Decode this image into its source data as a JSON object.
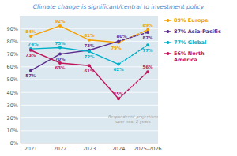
{
  "chart_data": {
    "type": "line",
    "title": "Climate change is significant/central to investment policy",
    "categories": [
      "2021",
      "2022",
      "2023",
      "2024",
      "2025-2026"
    ],
    "series": [
      {
        "name": "89%  Europe",
        "color": "#f5a000",
        "values": [
          84,
          92,
          81,
          79,
          89
        ],
        "value_labels": [
          "84%",
          "92%",
          "81%",
          "79%",
          "89%"
        ]
      },
      {
        "name": "87%  Asia-Pacific",
        "color": "#5b2d8e",
        "values": [
          57,
          70,
          73,
          80,
          87
        ],
        "value_labels": [
          "57%",
          "70%",
          "73%",
          "80%",
          "87%"
        ]
      },
      {
        "name": "77%  Global",
        "color": "#00b0c8",
        "values": [
          74,
          75,
          72,
          62,
          77
        ],
        "value_labels": [
          "74%",
          "75%",
          "72%",
          "62%",
          "77%"
        ]
      },
      {
        "name": "56%  North\n       America",
        "color": "#c0165c",
        "values": [
          73,
          63,
          61,
          35,
          56
        ],
        "value_labels": [
          "73%",
          "63%",
          "61%",
          "35%",
          "56%"
        ]
      }
    ],
    "ylim": [
      0,
      100
    ],
    "yticks": [
      {
        "value": 0,
        "label": "0%"
      },
      {
        "value": 10,
        "label": "10%"
      },
      {
        "value": 20,
        "label": "20%"
      },
      {
        "value": 30,
        "label": "30%"
      },
      {
        "value": 40,
        "label": "40%"
      },
      {
        "value": 50,
        "label": "50%"
      },
      {
        "value": 60,
        "label": "60%"
      },
      {
        "value": 70,
        "label": "70%"
      },
      {
        "value": 80,
        "label": "80%"
      },
      {
        "value": 90,
        "label": "90%"
      }
    ],
    "annotations": [
      "Respondents' projections\nover next 2 years"
    ],
    "grid": true,
    "legend": "right",
    "data_labels": true
  }
}
